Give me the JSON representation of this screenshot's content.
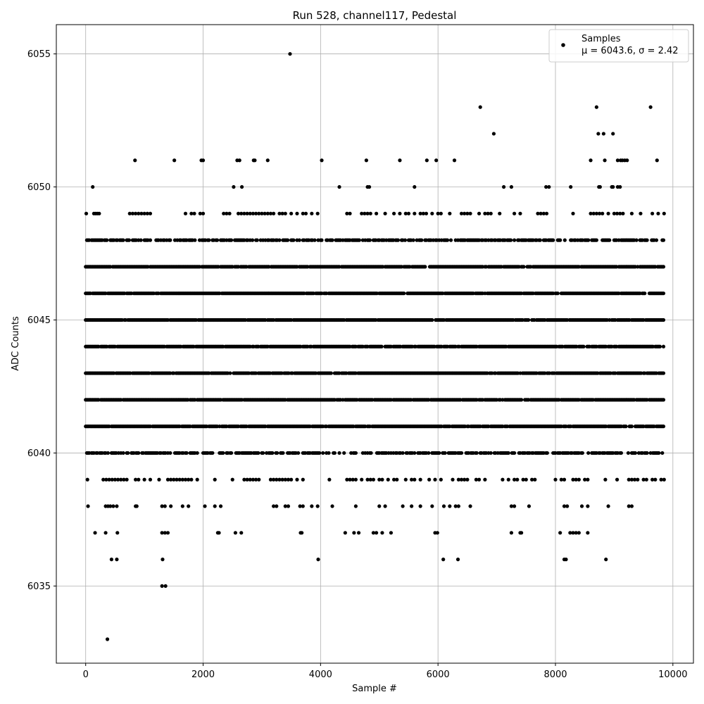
{
  "chart_data": {
    "type": "scatter",
    "title": "Run 528, channel117, Pedestal",
    "xlabel": "Sample #",
    "ylabel": "ADC Counts",
    "xlim": [
      -500,
      10350
    ],
    "ylim": [
      6032.1,
      6056.1
    ],
    "x_ticks": [
      0,
      2000,
      4000,
      6000,
      8000,
      10000
    ],
    "y_ticks": [
      6035,
      6040,
      6045,
      6050,
      6055
    ],
    "grid": true,
    "legend": {
      "placement": "top-right",
      "entries": [
        "Samples",
        "μ = 6043.6, σ = 2.42"
      ]
    },
    "marker_color": "#000000",
    "n_samples": 9850,
    "series": [
      {
        "name": "Samples",
        "bands": [
          {
            "y": 6041,
            "x_ranges": [
              [
                0,
                9850
              ]
            ]
          },
          {
            "y": 6042,
            "x_ranges": [
              [
                0,
                9850
              ]
            ]
          },
          {
            "y": 6043,
            "x_ranges": [
              [
                0,
                9850
              ]
            ]
          },
          {
            "y": 6044,
            "x_ranges": [
              [
                0,
                9850
              ]
            ]
          },
          {
            "y": 6045,
            "x_ranges": [
              [
                0,
                9850
              ]
            ]
          },
          {
            "y": 6046,
            "x_ranges": [
              [
                0,
                9850
              ]
            ]
          },
          {
            "y": 6047,
            "x_ranges": [
              [
                0,
                9850
              ]
            ]
          },
          {
            "y": 6040,
            "x_ranges": [
              [
                0,
                9850
              ]
            ]
          },
          {
            "y": 6048,
            "x_ranges": [
              [
                0,
                9850
              ]
            ]
          }
        ],
        "sparse_rows": [
          {
            "y": 6049,
            "x": [
              10,
              140,
              170,
              200,
              230,
              750,
              800,
              850,
              900,
              950,
              1000,
              1050,
              1100,
              1700,
              1800,
              1850,
              1950,
              2000,
              2350,
              2400,
              2450,
              2600,
              2650,
              2700,
              2750,
              2800,
              2850,
              2900,
              2950,
              3000,
              3050,
              3100,
              3150,
              3200,
              3300,
              3350,
              3400,
              3500,
              3600,
              3700,
              3750,
              3850,
              3950,
              4450,
              4500,
              4700,
              4750,
              4800,
              4850,
              4950,
              5100,
              5250,
              5350,
              5450,
              5500,
              5600,
              5700,
              5750,
              5800,
              5900,
              6000,
              6050,
              6200,
              6400,
              6450,
              6500,
              6550,
              6700,
              6800,
              6850,
              6900,
              7050,
              7300,
              7400,
              7700,
              7750,
              7800,
              7850,
              8300,
              8600,
              8650,
              8700,
              8750,
              8800,
              8900,
              9000,
              9050,
              9100,
              9150,
              9300,
              9450,
              9650,
              9750,
              9850
            ]
          },
          {
            "y": 6039,
            "x": [
              30,
              300,
              350,
              400,
              450,
              500,
              550,
              600,
              650,
              700,
              850,
              900,
              1000,
              1100,
              1250,
              1400,
              1450,
              1500,
              1550,
              1600,
              1650,
              1700,
              1750,
              1800,
              1900,
              2200,
              2500,
              2700,
              2750,
              2800,
              2850,
              2900,
              2950,
              3150,
              3200,
              3250,
              3300,
              3350,
              3400,
              3450,
              3500,
              3600,
              3700,
              4150,
              4450,
              4500,
              4550,
              4600,
              4700,
              4800,
              4850,
              4900,
              5000,
              5050,
              5150,
              5250,
              5300,
              5450,
              5550,
              5600,
              5700,
              5850,
              5950,
              6050,
              6250,
              6350,
              6400,
              6450,
              6500,
              6650,
              6700,
              6800,
              7100,
              7200,
              7300,
              7350,
              7450,
              7500,
              7600,
              7650,
              8000,
              8100,
              8150,
              8300,
              8350,
              8400,
              8500,
              8550,
              8850,
              9050,
              9250,
              9300,
              9350,
              9400,
              9500,
              9550,
              9650,
              9700,
              9800,
              9850
            ]
          },
          {
            "y": 6038,
            "x": [
              40,
              340,
              380,
              420,
              470,
              530,
              850,
              870,
              1300,
              1350,
              1450,
              1650,
              1750,
              2030,
              2200,
              2300,
              3200,
              3250,
              3400,
              3450,
              3650,
              3700,
              3850,
              3950,
              4200,
              4600,
              5000,
              5100,
              5400,
              5550,
              5700,
              5900,
              6100,
              6200,
              6300,
              6350,
              6550,
              7250,
              7300,
              7550,
              8150,
              8200,
              8450,
              8550,
              8900,
              9250,
              9300
            ]
          },
          {
            "y": 6037,
            "x": [
              160,
              340,
              540,
              1300,
              1350,
              1400,
              2250,
              2270,
              2550,
              2650,
              3660,
              3680,
              4420,
              4570,
              4650,
              4900,
              4950,
              5050,
              5200,
              5950,
              5990,
              7250,
              7400,
              7420,
              8080,
              8250,
              8300,
              8350,
              8400,
              8550
            ]
          },
          {
            "y": 6036,
            "x": [
              440,
              530,
              1310,
              3960,
              6090,
              6340,
              8150,
              8180,
              8860
            ]
          },
          {
            "y": 6035,
            "x": [
              1300,
              1360
            ]
          },
          {
            "y": 6033,
            "x": [
              370
            ]
          },
          {
            "y": 6050,
            "x": [
              120,
              2520,
              2660,
              4320,
              4800,
              4830,
              5600,
              7120,
              7250,
              7840,
              7890,
              8260,
              8740,
              8760,
              8960,
              8980,
              9060,
              9100
            ]
          },
          {
            "y": 6051,
            "x": [
              840,
              1510,
              1970,
              2000,
              2580,
              2620,
              2860,
              2880,
              3100,
              4020,
              4780,
              5350,
              5810,
              5970,
              6280,
              8600,
              8840,
              9060,
              9110,
              9140,
              9180,
              9220,
              9730
            ]
          },
          {
            "y": 6052,
            "x": [
              6950,
              8730,
              8820,
              8980
            ]
          },
          {
            "y": 6053,
            "x": [
              6720,
              8700,
              9620
            ]
          },
          {
            "y": 6055,
            "x": [
              3480
            ]
          }
        ]
      }
    ]
  }
}
